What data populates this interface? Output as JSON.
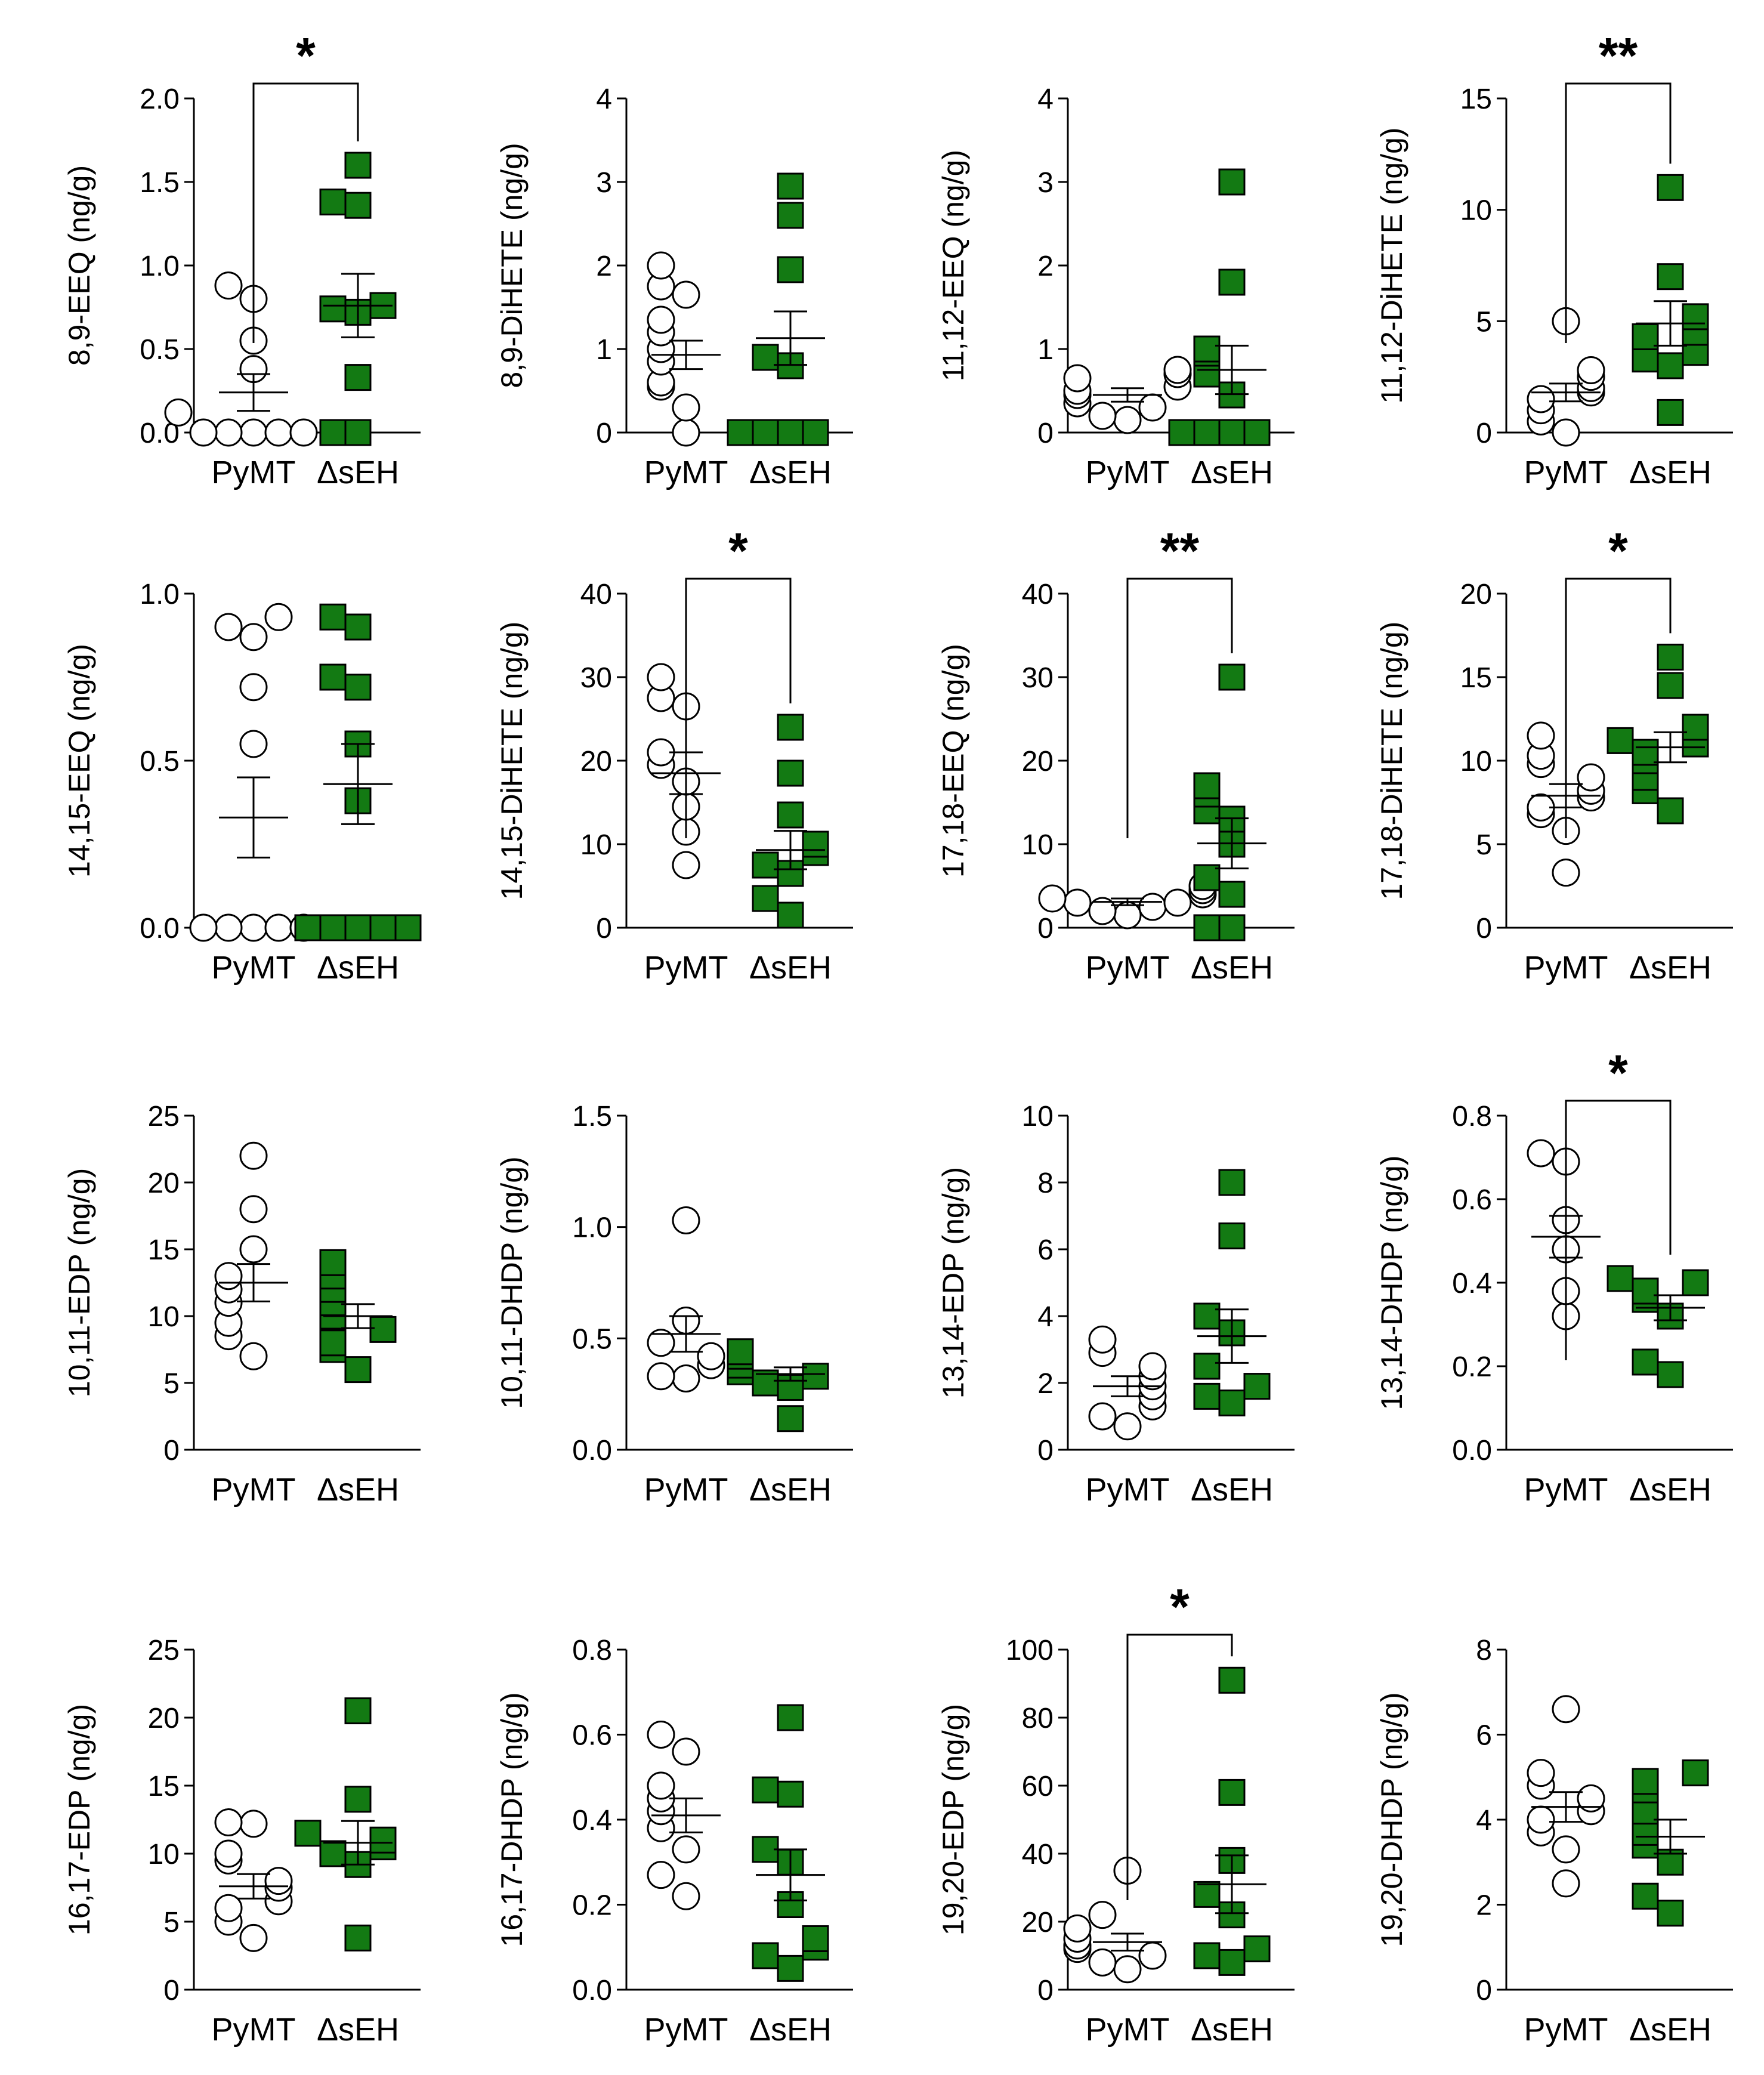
{
  "colors": {
    "pymt_fill": "#ffffff",
    "dseh_fill": "#137a13",
    "stroke": "#000000"
  },
  "chart_data": [
    {
      "type": "scatter",
      "ylabel": "8,9-EEQ (ng/g)",
      "categories": [
        "PyMT",
        "ΔsEH"
      ],
      "ylim": [
        0,
        2.0
      ],
      "yticks": [
        "0.0",
        "0.5",
        "1.0",
        "1.5",
        "2.0"
      ],
      "significance": "*",
      "series": [
        {
          "name": "PyMT",
          "values": [
            0,
            0,
            0,
            0,
            0,
            0.12,
            0.38,
            0.55,
            0.8,
            0.88
          ],
          "mean": 0.24,
          "sem": 0.11
        },
        {
          "name": "ΔsEH",
          "values": [
            0,
            0,
            0.33,
            0.72,
            0.74,
            0.76,
            1.38,
            1.36,
            1.6
          ],
          "mean": 0.76,
          "sem": 0.19
        }
      ]
    },
    {
      "type": "scatter",
      "ylabel": "8,9-DiHETE (ng/g)",
      "categories": [
        "PyMT",
        "ΔsEH"
      ],
      "ylim": [
        0,
        4
      ],
      "yticks": [
        "0",
        "1",
        "2",
        "3",
        "4"
      ],
      "significance": "",
      "series": [
        {
          "name": "PyMT",
          "values": [
            0,
            0.3,
            0.55,
            0.6,
            0.85,
            1.0,
            1.2,
            1.35,
            1.65,
            1.75,
            2.0
          ],
          "mean": 0.93,
          "sem": 0.17
        },
        {
          "name": "ΔsEH",
          "values": [
            0,
            0,
            0,
            0,
            0.8,
            0.9,
            1.95,
            2.6,
            2.95
          ],
          "mean": 1.13,
          "sem": 0.32
        }
      ]
    },
    {
      "type": "scatter",
      "ylabel": "11,12-EEQ (ng/g)",
      "categories": [
        "PyMT",
        "ΔsEH"
      ],
      "ylim": [
        0,
        4
      ],
      "yticks": [
        "0",
        "1",
        "2",
        "3",
        "4"
      ],
      "significance": "",
      "series": [
        {
          "name": "PyMT",
          "values": [
            0.15,
            0.2,
            0.3,
            0.35,
            0.45,
            0.5,
            0.55,
            0.65,
            0.7,
            0.75
          ],
          "mean": 0.45,
          "sem": 0.08
        },
        {
          "name": "ΔsEH",
          "values": [
            0,
            0,
            0,
            0,
            0.45,
            0.7,
            0.95,
            1.0,
            1.8,
            3.0
          ],
          "mean": 0.75,
          "sem": 0.29
        }
      ]
    },
    {
      "type": "scatter",
      "ylabel": "11,12-DiHETE (ng/g)",
      "categories": [
        "PyMT",
        "ΔsEH"
      ],
      "ylim": [
        0,
        15
      ],
      "yticks": [
        "0",
        "5",
        "10",
        "15"
      ],
      "significance": "**",
      "series": [
        {
          "name": "PyMT",
          "values": [
            0,
            0.5,
            1.0,
            1.5,
            1.8,
            2.0,
            2.5,
            2.8,
            5.0
          ],
          "mean": 1.8,
          "sem": 0.4
        },
        {
          "name": "ΔsEH",
          "values": [
            0.9,
            3.0,
            3.3,
            3.6,
            4.3,
            4.5,
            5.2,
            7.0,
            11.0
          ],
          "mean": 4.9,
          "sem": 1.0
        }
      ]
    },
    {
      "type": "scatter",
      "ylabel": "14,15-EEQ (ng/g)",
      "categories": [
        "PyMT",
        "ΔsEH"
      ],
      "ylim": [
        0,
        1.0
      ],
      "yticks": [
        "0.0",
        "0.5",
        "1.0"
      ],
      "significance": "",
      "series": [
        {
          "name": "PyMT",
          "values": [
            0,
            0,
            0,
            0,
            0,
            0.55,
            0.72,
            0.87,
            0.9,
            0.93
          ],
          "mean": 0.33,
          "sem": 0.12
        },
        {
          "name": "ΔsEH",
          "values": [
            0,
            0,
            0,
            0,
            0,
            0.38,
            0.55,
            0.72,
            0.75,
            0.9,
            0.93
          ],
          "mean": 0.43,
          "sem": 0.12
        }
      ]
    },
    {
      "type": "scatter",
      "ylabel": "14,15-DiHETE (ng/g)",
      "categories": [
        "PyMT",
        "ΔsEH"
      ],
      "ylim": [
        0,
        40
      ],
      "yticks": [
        "0",
        "10",
        "20",
        "30",
        "40"
      ],
      "significance": "*",
      "series": [
        {
          "name": "PyMT",
          "values": [
            7.5,
            11.5,
            14.5,
            17.5,
            19.5,
            21,
            26.5,
            27.5,
            30
          ],
          "mean": 18.5,
          "sem": 2.5
        },
        {
          "name": "ΔsEH",
          "values": [
            1.5,
            3.5,
            6.5,
            7.5,
            9,
            10,
            13.5,
            18.5,
            24
          ],
          "mean": 9.3,
          "sem": 2.3
        }
      ]
    },
    {
      "type": "scatter",
      "ylabel": "17,18-EEQ (ng/g)",
      "categories": [
        "PyMT",
        "ΔsEH"
      ],
      "ylim": [
        0,
        40
      ],
      "yticks": [
        "0",
        "10",
        "20",
        "30",
        "40"
      ],
      "significance": "**",
      "series": [
        {
          "name": "PyMT",
          "values": [
            1.5,
            2.0,
            2.5,
            3.0,
            3.0,
            3.5,
            4.0,
            4.5,
            5.0
          ],
          "mean": 3.1,
          "sem": 0.4
        },
        {
          "name": "ΔsEH",
          "values": [
            0,
            0,
            4,
            6,
            10,
            13,
            14,
            16,
            17,
            30
          ],
          "mean": 10.1,
          "sem": 3.0
        }
      ]
    },
    {
      "type": "scatter",
      "ylabel": "17,18-DiHETE (ng/g)",
      "categories": [
        "PyMT",
        "ΔsEH"
      ],
      "ylim": [
        0,
        20
      ],
      "yticks": [
        "0",
        "5",
        "10",
        "15",
        "20"
      ],
      "significance": "*",
      "series": [
        {
          "name": "PyMT",
          "values": [
            3.3,
            5.8,
            6.8,
            7.2,
            7.8,
            8.2,
            9.0,
            9.8,
            10.3,
            11.5
          ],
          "mean": 7.9,
          "sem": 0.7
        },
        {
          "name": "ΔsEH",
          "values": [
            7,
            8.2,
            9,
            10,
            10.5,
            11,
            11.2,
            12,
            14.5,
            16.2
          ],
          "mean": 10.8,
          "sem": 0.9
        }
      ]
    },
    {
      "type": "scatter",
      "ylabel": "10,11-EDP (ng/g)",
      "categories": [
        "PyMT",
        "ΔsEH"
      ],
      "ylim": [
        0,
        25
      ],
      "yticks": [
        "0",
        "5",
        "10",
        "15",
        "20",
        "25"
      ],
      "significance": "",
      "series": [
        {
          "name": "PyMT",
          "values": [
            7,
            8.5,
            9.5,
            11,
            12,
            13,
            15,
            18,
            22
          ],
          "mean": 12.5,
          "sem": 1.4
        },
        {
          "name": "ΔsEH",
          "values": [
            6,
            7.5,
            8,
            9,
            10,
            11,
            12,
            13,
            14
          ],
          "mean": 10,
          "sem": 0.9
        }
      ]
    },
    {
      "type": "scatter",
      "ylabel": "10,11-DHDP (ng/g)",
      "categories": [
        "PyMT",
        "ΔsEH"
      ],
      "ylim": [
        0,
        1.5
      ],
      "yticks": [
        "0.0",
        "0.5",
        "1.0",
        "1.5"
      ],
      "significance": "",
      "series": [
        {
          "name": "PyMT",
          "values": [
            0.32,
            0.33,
            0.38,
            0.42,
            0.48,
            0.58,
            1.03
          ],
          "mean": 0.52,
          "sem": 0.08
        },
        {
          "name": "ΔsEH",
          "values": [
            0.14,
            0.28,
            0.3,
            0.33,
            0.35,
            0.38,
            0.42,
            0.44
          ],
          "mean": 0.34,
          "sem": 0.03
        }
      ]
    },
    {
      "type": "scatter",
      "ylabel": "13,14-EDP (ng/g)",
      "categories": [
        "PyMT",
        "ΔsEH"
      ],
      "ylim": [
        0,
        10
      ],
      "yticks": [
        "0",
        "2",
        "4",
        "6",
        "8",
        "10"
      ],
      "significance": "",
      "series": [
        {
          "name": "PyMT",
          "values": [
            0.7,
            1.0,
            1.3,
            1.6,
            1.9,
            2.2,
            2.5,
            2.9,
            3.3
          ],
          "mean": 1.9,
          "sem": 0.3
        },
        {
          "name": "ΔsEH",
          "values": [
            1.4,
            1.6,
            1.9,
            2.5,
            3.5,
            4.0,
            6.4,
            8.0
          ],
          "mean": 3.4,
          "sem": 0.8
        }
      ]
    },
    {
      "type": "scatter",
      "ylabel": "13,14-DHDP (ng/g)",
      "categories": [
        "PyMT",
        "ΔsEH"
      ],
      "ylim": [
        0,
        0.8
      ],
      "yticks": [
        "0.0",
        "0.2",
        "0.4",
        "0.6",
        "0.8"
      ],
      "significance": "*",
      "series": [
        {
          "name": "PyMT",
          "values": [
            0.32,
            0.38,
            0.48,
            0.55,
            0.69,
            0.71
          ],
          "mean": 0.51,
          "sem": 0.05
        },
        {
          "name": "ΔsEH",
          "values": [
            0.18,
            0.21,
            0.32,
            0.36,
            0.38,
            0.4,
            0.41
          ],
          "mean": 0.34,
          "sem": 0.03
        }
      ]
    },
    {
      "type": "scatter",
      "ylabel": "16,17-EDP (ng/g)",
      "categories": [
        "PyMT",
        "ΔsEH"
      ],
      "ylim": [
        0,
        25
      ],
      "yticks": [
        "0",
        "5",
        "10",
        "15",
        "20",
        "25"
      ],
      "significance": "",
      "series": [
        {
          "name": "PyMT",
          "values": [
            3.8,
            5,
            6,
            6.5,
            7.5,
            8,
            9.5,
            10,
            12.2,
            12.3
          ],
          "mean": 7.6,
          "sem": 0.9
        },
        {
          "name": "ΔsEH",
          "values": [
            3.8,
            9.2,
            10,
            10.5,
            11,
            11.5,
            14,
            20.5
          ],
          "mean": 10.8,
          "sem": 1.6
        }
      ]
    },
    {
      "type": "scatter",
      "ylabel": "16,17-DHDP (ng/g)",
      "categories": [
        "PyMT",
        "ΔsEH"
      ],
      "ylim": [
        0,
        0.8
      ],
      "yticks": [
        "0.0",
        "0.2",
        "0.4",
        "0.6",
        "0.8"
      ],
      "significance": "",
      "series": [
        {
          "name": "PyMT",
          "values": [
            0.22,
            0.27,
            0.33,
            0.38,
            0.42,
            0.45,
            0.48,
            0.56,
            0.6
          ],
          "mean": 0.41,
          "sem": 0.04
        },
        {
          "name": "ΔsEH",
          "values": [
            0.05,
            0.08,
            0.1,
            0.12,
            0.2,
            0.3,
            0.33,
            0.46,
            0.47,
            0.64
          ],
          "mean": 0.27,
          "sem": 0.06
        }
      ]
    },
    {
      "type": "scatter",
      "ylabel": "19,20-EDP (ng/g)",
      "categories": [
        "PyMT",
        "ΔsEH"
      ],
      "ylim": [
        0,
        100
      ],
      "yticks": [
        "0",
        "20",
        "40",
        "60",
        "80",
        "100"
      ],
      "significance": "*",
      "series": [
        {
          "name": "PyMT",
          "values": [
            6,
            8,
            10,
            12,
            13,
            15,
            18,
            22,
            35
          ],
          "mean": 14,
          "sem": 2.5
        },
        {
          "name": "ΔsEH",
          "values": [
            8,
            10,
            12,
            22,
            28,
            38,
            58,
            91
          ],
          "mean": 31,
          "sem": 8.5
        }
      ]
    },
    {
      "type": "scatter",
      "ylabel": "19,20-DHDP (ng/g)",
      "categories": [
        "PyMT",
        "ΔsEH"
      ],
      "ylim": [
        0,
        8
      ],
      "yticks": [
        "0",
        "2",
        "4",
        "6",
        "8"
      ],
      "significance": "",
      "series": [
        {
          "name": "PyMT",
          "values": [
            2.5,
            3.3,
            3.7,
            4.0,
            4.2,
            4.5,
            4.8,
            5.1,
            6.6
          ],
          "mean": 4.3,
          "sem": 0.35
        },
        {
          "name": "ΔsEH",
          "values": [
            1.8,
            2.2,
            3.0,
            3.4,
            3.7,
            4.2,
            4.7,
            4.9,
            5.1
          ],
          "mean": 3.6,
          "sem": 0.4
        }
      ]
    }
  ]
}
